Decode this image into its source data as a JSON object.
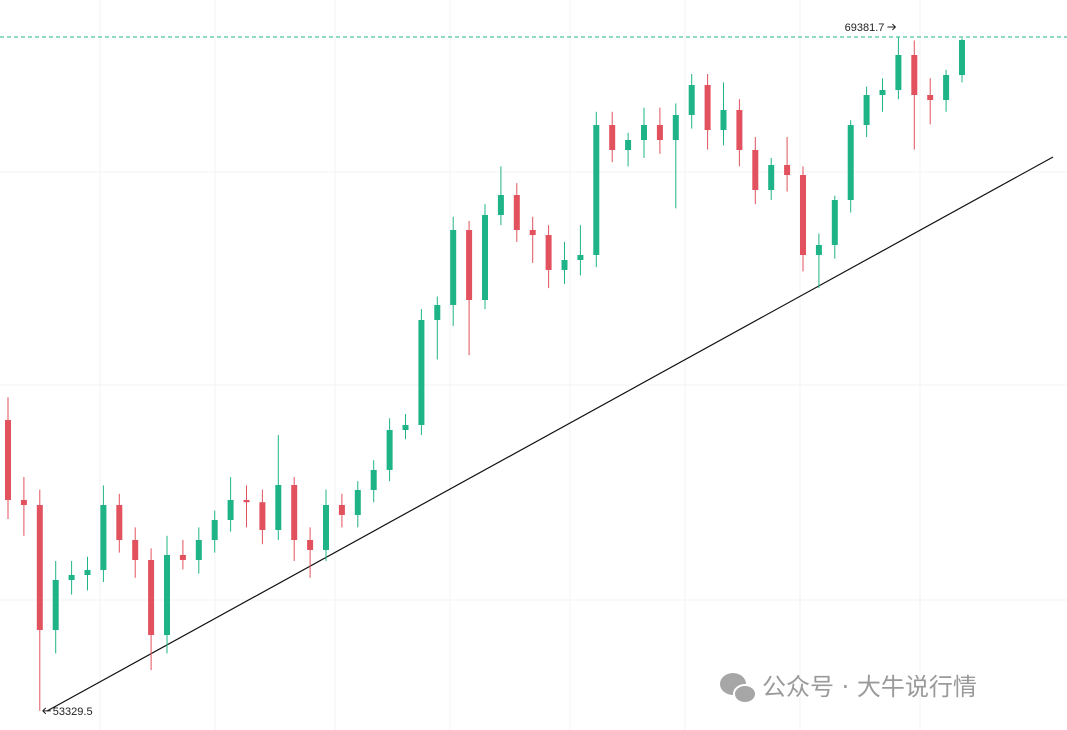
{
  "chart_data": {
    "type": "candlestick",
    "up_color": "#1fb487",
    "down_color": "#e2525e",
    "ylim": [
      52874,
      70263
    ],
    "max_label": 69381.7,
    "min_label": 53329.5,
    "open": [
      60259,
      58353,
      58234,
      55256,
      56447,
      56566,
      56686,
      58234,
      57400,
      56924,
      55137,
      57043,
      56924,
      57400,
      57877,
      58353,
      58300,
      57638,
      58710,
      57400,
      57162,
      58234,
      57996,
      58591,
      59068,
      60020,
      60139,
      62641,
      62998,
      64784,
      63117,
      65142,
      65618,
      64784,
      64665,
      63832,
      64070,
      64189,
      67285,
      66690,
      66928,
      67285,
      66928,
      67524,
      68238,
      67166,
      67643,
      66690,
      65737,
      66333,
      66094,
      64189,
      64427,
      65499,
      67285,
      68000,
      68119,
      68953,
      68000,
      67881,
      68476
    ],
    "high": [
      60800,
      58900,
      58600,
      56900,
      56900,
      57000,
      58700,
      58500,
      57700,
      57200,
      57500,
      57400,
      57700,
      58100,
      58900,
      58700,
      58600,
      59900,
      58900,
      57700,
      58600,
      58500,
      58800,
      59300,
      60300,
      60400,
      62900,
      63200,
      65100,
      65000,
      65400,
      66300,
      65900,
      65100,
      64900,
      64500,
      64900,
      67600,
      67600,
      67100,
      67700,
      67700,
      67800,
      68500,
      68500,
      68300,
      67900,
      67000,
      66500,
      67000,
      66300,
      64700,
      65600,
      67400,
      68200,
      68400,
      69381.7,
      69300,
      68400,
      68600,
      69350
    ],
    "low": [
      57900,
      57500,
      53329.5,
      54700,
      56100,
      56200,
      56400,
      57100,
      56500,
      54300,
      54700,
      56700,
      56600,
      57100,
      57600,
      57700,
      57300,
      57400,
      56900,
      56500,
      56900,
      57700,
      57700,
      58300,
      58800,
      59800,
      59900,
      61700,
      62500,
      61800,
      62900,
      64900,
      64500,
      64000,
      63400,
      63500,
      63700,
      63900,
      66400,
      66300,
      66500,
      66600,
      65300,
      67200,
      66700,
      66800,
      66300,
      65400,
      65500,
      65700,
      63800,
      63400,
      64100,
      65200,
      67000,
      67600,
      67900,
      66700,
      67300,
      67600,
      68300
    ],
    "close": [
      58353,
      58234,
      55256,
      56447,
      56566,
      56686,
      58234,
      57400,
      56924,
      55137,
      57043,
      56924,
      57400,
      57877,
      58353,
      58300,
      57638,
      58710,
      57400,
      57162,
      58234,
      57996,
      58591,
      59068,
      60020,
      60139,
      62641,
      62998,
      64784,
      63117,
      65142,
      65618,
      64784,
      64665,
      63832,
      64070,
      64189,
      67285,
      66690,
      66928,
      67285,
      66928,
      67524,
      68238,
      67166,
      67643,
      66690,
      65737,
      66333,
      66094,
      64189,
      64427,
      65499,
      67285,
      68000,
      68119,
      68953,
      68000,
      67881,
      68476,
      69310
    ]
  },
  "watermark": "公众号 · 大牛说行情"
}
